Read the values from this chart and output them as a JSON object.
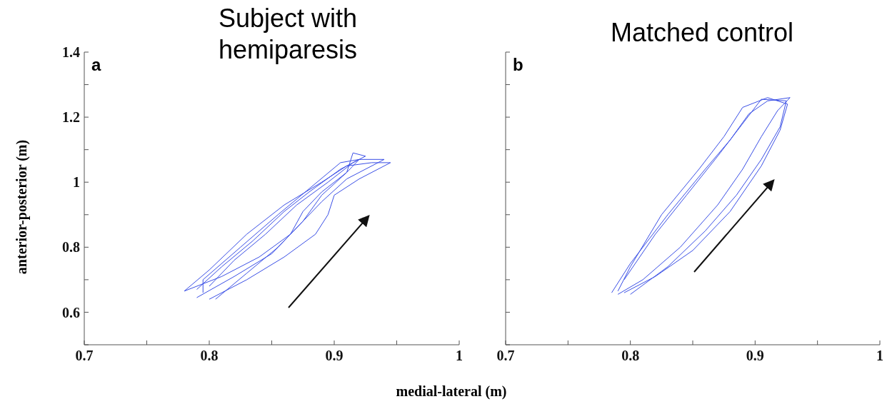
{
  "chart_data": [
    {
      "type": "line",
      "title": "Subject with hemiparesis",
      "xlabel": "medial-lateral (m)",
      "ylabel": "anterior-posterior (m)",
      "annotations": [
        "a"
      ],
      "xlim": [
        0.7,
        1
      ],
      "ylim": [
        0.5,
        1.4
      ],
      "xticks": [
        0.7,
        {
          "value": 0.75,
          "label": null
        },
        0.8,
        {
          "value": 0.85,
          "label": null
        },
        0.9,
        {
          "value": 0.95,
          "label": null
        },
        1
      ],
      "yticks": [
        {
          "value": 0.5,
          "label": null
        },
        0.6,
        {
          "value": 0.7,
          "label": null
        },
        0.8,
        {
          "value": 0.9,
          "label": null
        },
        1,
        {
          "value": 1.1,
          "label": null
        },
        1.2,
        {
          "value": 1.3,
          "label": null
        },
        1.4
      ],
      "grid": false,
      "marker": "none",
      "line_style": "solid",
      "series": [
        {
          "color": "#3a4fe6",
          "x": [
            0.8,
            0.83,
            0.86,
            0.885,
            0.895,
            0.9,
            0.92,
            0.945,
            0.93,
            0.91,
            0.89,
            0.86,
            0.83,
            0.8,
            0.78
          ],
          "values": [
            0.64,
            0.7,
            0.77,
            0.84,
            0.9,
            0.96,
            1.01,
            1.06,
            1.06,
            1.05,
            1.0,
            0.93,
            0.84,
            0.73,
            0.665
          ]
        },
        {
          "color": "#3a4fe6",
          "x": [
            0.79,
            0.82,
            0.85,
            0.87,
            0.89,
            0.91,
            0.94,
            0.92,
            0.905,
            0.88,
            0.86,
            0.835,
            0.81,
            0.79
          ],
          "values": [
            0.645,
            0.71,
            0.78,
            0.86,
            0.94,
            1.01,
            1.07,
            1.07,
            1.04,
            0.97,
            0.91,
            0.82,
            0.74,
            0.67
          ]
        },
        {
          "color": "#3a4fe6",
          "x": [
            0.805,
            0.83,
            0.855,
            0.875,
            0.89,
            0.91,
            0.915,
            0.925,
            0.915,
            0.895,
            0.87,
            0.845,
            0.82,
            0.8
          ],
          "values": [
            0.64,
            0.72,
            0.8,
            0.88,
            0.96,
            1.03,
            1.09,
            1.08,
            1.06,
            1.0,
            0.93,
            0.84,
            0.76,
            0.68
          ]
        },
        {
          "color": "#3a4fe6",
          "x": [
            0.78,
            0.81,
            0.84,
            0.865,
            0.875,
            0.89,
            0.91,
            0.92,
            0.905,
            0.88,
            0.855,
            0.825,
            0.795,
            0.795
          ],
          "values": [
            0.665,
            0.71,
            0.77,
            0.84,
            0.91,
            0.97,
            1.03,
            1.07,
            1.06,
            0.98,
            0.9,
            0.8,
            0.7,
            0.66
          ]
        }
      ]
    },
    {
      "type": "line",
      "title": "Matched control",
      "annotations": [
        "b"
      ],
      "xlim": [
        0.7,
        1
      ],
      "ylim": [
        0.5,
        1.4
      ],
      "tick_labels": "x",
      "xticks": [
        0.7,
        {
          "value": 0.75,
          "label": null
        },
        0.8,
        {
          "value": 0.85,
          "label": null
        },
        0.9,
        {
          "value": 0.95,
          "label": null
        },
        1
      ],
      "yticks": [
        {
          "value": 0.5,
          "label": null
        },
        {
          "value": 0.6,
          "label": null
        },
        {
          "value": 0.7,
          "label": null
        },
        {
          "value": 0.8,
          "label": null
        },
        {
          "value": 0.9,
          "label": null
        },
        {
          "value": 1,
          "label": null
        },
        {
          "value": 1.1,
          "label": null
        },
        {
          "value": 1.2,
          "label": null
        },
        {
          "value": 1.3,
          "label": null
        },
        {
          "value": 1.4,
          "label": null
        }
      ],
      "grid": false,
      "marker": "none",
      "line_style": "solid",
      "series": [
        {
          "color": "#3a4fe6",
          "x": [
            0.79,
            0.81,
            0.84,
            0.87,
            0.89,
            0.905,
            0.918,
            0.928,
            0.91,
            0.895,
            0.88,
            0.86,
            0.83,
            0.8,
            0.785
          ],
          "values": [
            0.655,
            0.7,
            0.8,
            0.93,
            1.04,
            1.14,
            1.22,
            1.26,
            1.25,
            1.21,
            1.13,
            1.04,
            0.9,
            0.75,
            0.66
          ]
        },
        {
          "color": "#3a4fe6",
          "x": [
            0.795,
            0.82,
            0.85,
            0.88,
            0.905,
            0.92,
            0.926,
            0.91,
            0.89,
            0.875,
            0.855,
            0.825,
            0.8,
            0.79
          ],
          "values": [
            0.66,
            0.71,
            0.79,
            0.91,
            1.05,
            1.16,
            1.24,
            1.26,
            1.23,
            1.14,
            1.04,
            0.9,
            0.74,
            0.665
          ]
        },
        {
          "color": "#3a4fe6",
          "x": [
            0.8,
            0.83,
            0.86,
            0.885,
            0.905,
            0.92,
            0.925,
            0.905,
            0.89,
            0.87,
            0.845,
            0.82,
            0.795
          ],
          "values": [
            0.655,
            0.74,
            0.85,
            0.96,
            1.07,
            1.17,
            1.25,
            1.255,
            1.18,
            1.08,
            0.96,
            0.84,
            0.7
          ]
        }
      ]
    }
  ]
}
